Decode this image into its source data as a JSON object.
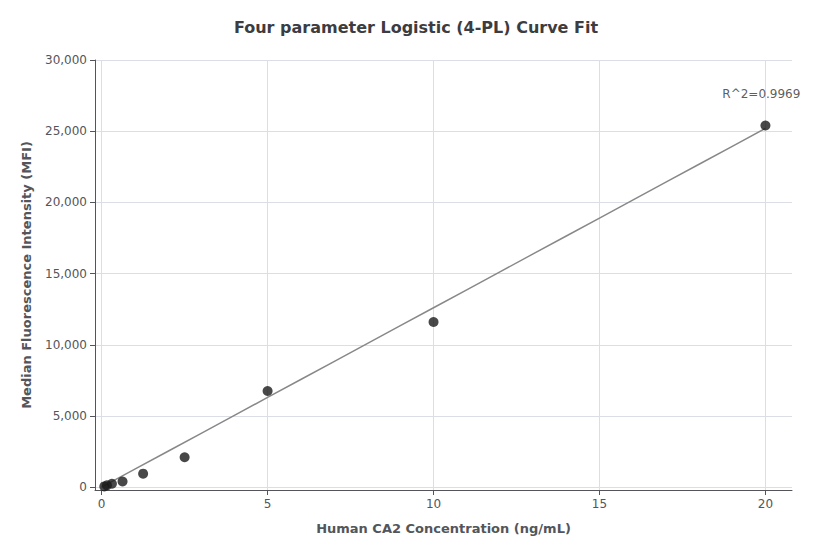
{
  "chart_data": {
    "type": "scatter",
    "title": "Four parameter Logistic (4-PL) Curve Fit",
    "xlabel": "Human CA2 Concentration (ng/mL)",
    "ylabel": "Median Fluorescence Intensity (MFI)",
    "series": [
      {
        "type": "scatter",
        "color": "#1a1a1a",
        "x": [
          0.08,
          0.16,
          0.31,
          0.63,
          1.25,
          2.5,
          5.0,
          10.0,
          20.0
        ],
        "values": [
          50,
          130,
          240,
          400,
          950,
          2100,
          6750,
          11600,
          25400
        ]
      },
      {
        "type": "line",
        "color": "#888888",
        "x": [
          0.0,
          1.0,
          2.0,
          3.0,
          4.0,
          5.0,
          6.0,
          7.0,
          8.0,
          9.0,
          10.0,
          11.0,
          12.0,
          13.0,
          14.0,
          15.0,
          16.0,
          17.0,
          18.0,
          19.0,
          20.0
        ],
        "values": [
          0,
          1260,
          2520,
          3780,
          5040,
          6300,
          7560,
          8820,
          10080,
          11340,
          12600,
          13860,
          15120,
          16380,
          17640,
          18900,
          20160,
          21420,
          22680,
          23940,
          25200
        ]
      }
    ],
    "xlim": [
      -0.2,
      20.8
    ],
    "ylim": [
      -200,
      30000
    ],
    "xticks": [
      0,
      5,
      10,
      15,
      20
    ],
    "yticks": [
      0,
      {
        "value": 5000,
        "label": "5,000"
      },
      {
        "value": 10000,
        "label": "10,000"
      },
      {
        "value": 15000,
        "label": "15,000"
      },
      {
        "value": 20000,
        "label": "20,000"
      },
      {
        "value": 25000,
        "label": "25,000"
      },
      {
        "value": 30000,
        "label": "30,000"
      }
    ],
    "annotations": [
      {
        "text": "R^2=0.9969",
        "x": 18.7,
        "y": 27200
      }
    ],
    "grid": true
  }
}
